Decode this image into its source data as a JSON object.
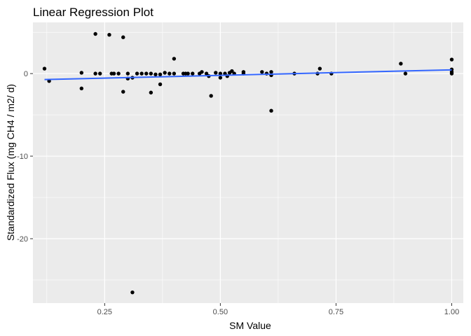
{
  "chart_data": {
    "type": "scatter",
    "title": "Linear Regression Plot",
    "xlabel": "SM Value",
    "ylabel": "Standardized Flux (mg CH4 / m2/ d)",
    "xlim": [
      0.095,
      1.025
    ],
    "ylim": [
      -27.8,
      6.2
    ],
    "x_ticks": [
      0.25,
      0.5,
      0.75,
      1.0
    ],
    "x_tick_labels": [
      "0.25",
      "0.50",
      "0.75",
      "1.00"
    ],
    "y_ticks": [
      -20,
      -10,
      0
    ],
    "y_tick_labels": [
      "-20",
      "-10",
      "0"
    ],
    "grid": true,
    "colors": {
      "panel": "#ebebeb",
      "grid": "#ffffff",
      "points": "#000000",
      "fit_line": "#3366ff"
    },
    "fit_line": {
      "x": [
        0.12,
        1.0
      ],
      "y": [
        -0.72,
        0.45
      ]
    },
    "points": [
      {
        "x": 0.12,
        "y": 0.6
      },
      {
        "x": 0.13,
        "y": -0.9
      },
      {
        "x": 0.2,
        "y": 0.1
      },
      {
        "x": 0.2,
        "y": -1.8
      },
      {
        "x": 0.23,
        "y": 4.8
      },
      {
        "x": 0.23,
        "y": 0.0
      },
      {
        "x": 0.24,
        "y": 0.0
      },
      {
        "x": 0.26,
        "y": 4.7
      },
      {
        "x": 0.265,
        "y": 0.0
      },
      {
        "x": 0.27,
        "y": 0.0
      },
      {
        "x": 0.28,
        "y": 0.0
      },
      {
        "x": 0.29,
        "y": 4.4
      },
      {
        "x": 0.29,
        "y": -2.2
      },
      {
        "x": 0.3,
        "y": 0.0
      },
      {
        "x": 0.3,
        "y": -0.6
      },
      {
        "x": 0.31,
        "y": -0.5
      },
      {
        "x": 0.31,
        "y": -26.5
      },
      {
        "x": 0.32,
        "y": 0.0
      },
      {
        "x": 0.33,
        "y": 0.0
      },
      {
        "x": 0.34,
        "y": 0.0
      },
      {
        "x": 0.35,
        "y": -2.3
      },
      {
        "x": 0.35,
        "y": 0.0
      },
      {
        "x": 0.36,
        "y": -0.1
      },
      {
        "x": 0.37,
        "y": -1.3
      },
      {
        "x": 0.37,
        "y": -0.1
      },
      {
        "x": 0.38,
        "y": 0.1
      },
      {
        "x": 0.39,
        "y": 0.0
      },
      {
        "x": 0.4,
        "y": 1.8
      },
      {
        "x": 0.4,
        "y": 0.0
      },
      {
        "x": 0.42,
        "y": 0.0
      },
      {
        "x": 0.425,
        "y": 0.0
      },
      {
        "x": 0.43,
        "y": 0.0
      },
      {
        "x": 0.44,
        "y": 0.0
      },
      {
        "x": 0.455,
        "y": 0.0
      },
      {
        "x": 0.46,
        "y": 0.2
      },
      {
        "x": 0.47,
        "y": 0.0
      },
      {
        "x": 0.475,
        "y": -0.3
      },
      {
        "x": 0.48,
        "y": -2.7
      },
      {
        "x": 0.49,
        "y": 0.1
      },
      {
        "x": 0.5,
        "y": 0.0
      },
      {
        "x": 0.5,
        "y": -0.5
      },
      {
        "x": 0.51,
        "y": 0.0
      },
      {
        "x": 0.515,
        "y": -0.3
      },
      {
        "x": 0.52,
        "y": 0.1
      },
      {
        "x": 0.525,
        "y": 0.3
      },
      {
        "x": 0.53,
        "y": 0.0
      },
      {
        "x": 0.55,
        "y": 0.2
      },
      {
        "x": 0.55,
        "y": 0.0
      },
      {
        "x": 0.59,
        "y": 0.2
      },
      {
        "x": 0.6,
        "y": 0.0
      },
      {
        "x": 0.61,
        "y": 0.2
      },
      {
        "x": 0.61,
        "y": -4.5
      },
      {
        "x": 0.61,
        "y": -0.2
      },
      {
        "x": 0.66,
        "y": 0.0
      },
      {
        "x": 0.71,
        "y": 0.0
      },
      {
        "x": 0.715,
        "y": 0.6
      },
      {
        "x": 0.74,
        "y": 0.0
      },
      {
        "x": 0.89,
        "y": 1.2
      },
      {
        "x": 0.9,
        "y": 0.0
      },
      {
        "x": 1.0,
        "y": 1.7
      },
      {
        "x": 1.0,
        "y": 0.5
      },
      {
        "x": 1.0,
        "y": 0.2
      },
      {
        "x": 1.0,
        "y": 0.0
      }
    ]
  }
}
